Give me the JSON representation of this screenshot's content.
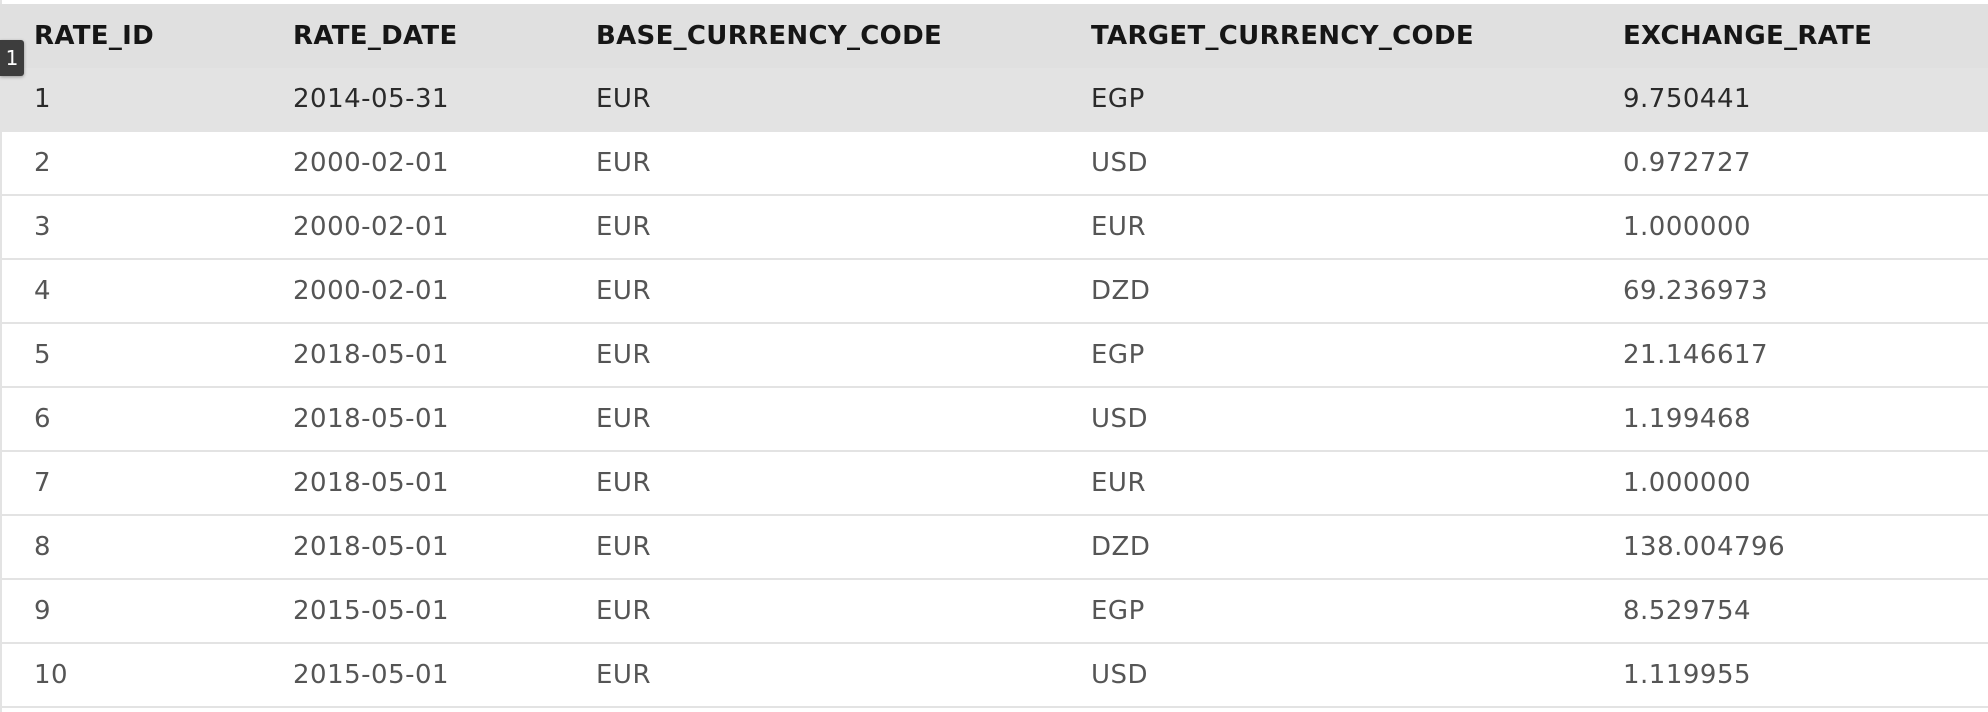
{
  "row_marker": "1",
  "table": {
    "columns": [
      "RATE_ID",
      "RATE_DATE",
      "BASE_CURRENCY_CODE",
      "TARGET_CURRENCY_CODE",
      "EXCHANGE_RATE"
    ],
    "rows": [
      [
        "1",
        "2014-05-31",
        "EUR",
        "EGP",
        "9.750441"
      ],
      [
        "2",
        "2000-02-01",
        "EUR",
        "USD",
        "0.972727"
      ],
      [
        "3",
        "2000-02-01",
        "EUR",
        "EUR",
        "1.000000"
      ],
      [
        "4",
        "2000-02-01",
        "EUR",
        "DZD",
        "69.236973"
      ],
      [
        "5",
        "2018-05-01",
        "EUR",
        "EGP",
        "21.146617"
      ],
      [
        "6",
        "2018-05-01",
        "EUR",
        "USD",
        "1.199468"
      ],
      [
        "7",
        "2018-05-01",
        "EUR",
        "EUR",
        "1.000000"
      ],
      [
        "8",
        "2018-05-01",
        "EUR",
        "DZD",
        "138.004796"
      ],
      [
        "9",
        "2015-05-01",
        "EUR",
        "EGP",
        "8.529754"
      ],
      [
        "10",
        "2015-05-01",
        "EUR",
        "USD",
        "1.119955"
      ]
    ],
    "selected_row": 0
  },
  "colors": {
    "header_bg": "#e0e0e0",
    "selected_row_bg": "#e3e3e3",
    "row_divider": "#e3e3e3",
    "marker_bg": "#3d3d3d"
  }
}
